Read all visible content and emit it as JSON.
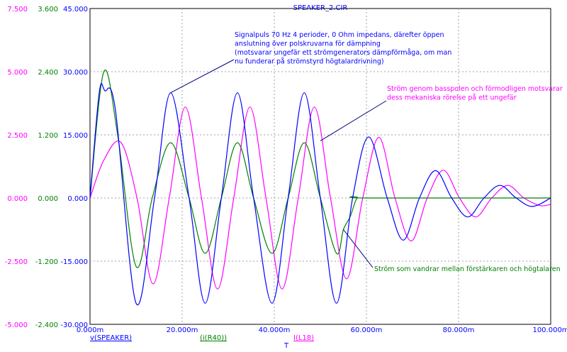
{
  "chart_data": {
    "type": "line",
    "title": "SPEAKER_2.CIR",
    "xlabel": "T",
    "x_ticks": [
      "0.000m",
      "20.000m",
      "40.000m",
      "60.000m",
      "80.000m",
      "100.000m"
    ],
    "xlim": [
      0,
      100
    ],
    "grid": true,
    "axes": [
      {
        "ticks": [
          "7.500",
          "5.000",
          "2.500",
          "0.000",
          "-2.500",
          "-5.000"
        ],
        "lim": [
          -5,
          7.5
        ],
        "color": "#ff00ff"
      },
      {
        "ticks": [
          "3.600",
          "2.400",
          "1.200",
          "0.000",
          "-1.200",
          "-2.400"
        ],
        "lim": [
          -2.4,
          3.6
        ],
        "color": "#008000"
      },
      {
        "ticks": [
          "45.000",
          "30.000",
          "15.000",
          "0.000",
          "-15.000",
          "-30.000"
        ],
        "lim": [
          -30,
          45
        ],
        "color": "#0000ff"
      }
    ],
    "series": [
      {
        "name": "v(SPEAKER)",
        "color": "#0000ff",
        "axis": 2,
        "x": [
          0,
          2.0,
          3.2,
          5.5,
          10.0,
          14.0,
          17.5,
          21.5,
          25.0,
          28.5,
          32.0,
          35.5,
          39.5,
          43.0,
          46.5,
          50.0,
          53.5,
          57.0,
          60.5,
          64.5,
          68.0,
          71.5,
          75.0,
          78.5,
          82.0,
          85.5,
          89.0,
          92.5,
          96.0,
          100.0
        ],
        "y": [
          0,
          25.0,
          25.5,
          21.0,
          -25.0,
          0,
          25.0,
          0,
          -25.0,
          0,
          25.0,
          0,
          -25.0,
          0,
          25.0,
          0,
          -25.0,
          0,
          14.5,
          0,
          -10.0,
          0,
          6.5,
          0,
          -4.5,
          0,
          3.0,
          0,
          -2.0,
          0
        ]
      },
      {
        "name": "(i(R40))",
        "color": "#008000",
        "axis": 1,
        "x": [
          0,
          3.0,
          6.0,
          10.0,
          13.5,
          17.5,
          21.5,
          25.0,
          28.5,
          32.0,
          35.5,
          39.5,
          43.0,
          46.5,
          50.0,
          53.5,
          55.0,
          56.5,
          58.0,
          60.0,
          100.0
        ],
        "y": [
          0,
          2.4,
          1.2,
          -1.3,
          0,
          1.05,
          0,
          -1.05,
          0,
          1.05,
          0,
          -1.05,
          0,
          1.05,
          0,
          -1.05,
          -0.6,
          -0.35,
          0,
          0,
          0
        ]
      },
      {
        "name": "I(L18)",
        "color": "#ff00ff",
        "axis": 0,
        "x": [
          0,
          3.0,
          6.7,
          10.2,
          13.7,
          17.2,
          20.7,
          24.2,
          27.7,
          31.2,
          34.7,
          38.2,
          41.7,
          45.2,
          48.7,
          52.2,
          55.7,
          59.2,
          62.7,
          66.2,
          69.7,
          73.2,
          76.7,
          80.2,
          83.7,
          87.2,
          90.7,
          94.2,
          97.7,
          100.0
        ],
        "y": [
          0,
          1.5,
          2.2,
          0,
          -3.4,
          0,
          3.6,
          0,
          -3.6,
          0,
          3.6,
          0,
          -3.6,
          0,
          3.6,
          0,
          -3.2,
          0,
          2.4,
          0,
          -1.7,
          0,
          1.1,
          0,
          -0.75,
          0,
          0.5,
          0,
          -0.3,
          -0.25
        ]
      }
    ],
    "annotations": [
      {
        "lines": [
          "Signalpuls 70 Hz 4 perioder, 0 Ohm impedans, därefter  öppen",
          "anslutning över polskruvarna för dämpning",
          "(motsvarar ungefär ett strömgenerators dämpförmåga, om man",
          "nu funderar på strömstyrd högtalardrivning)"
        ],
        "color": "#0000ff",
        "target_series": 0,
        "target_x": 17.5
      },
      {
        "lines": [
          "Ström genom basspolen och förmodligen motsvarar",
          "dess mekaniska rörelse på ett ungefär"
        ],
        "color": "#ff00ff",
        "target_series": 2,
        "target_x": 50.0
      },
      {
        "lines": [
          "Ström som vandrar mellan förstärkaren och högtalaren"
        ],
        "color": "#008000",
        "target_series": 1,
        "target_x": 55.0
      }
    ]
  }
}
